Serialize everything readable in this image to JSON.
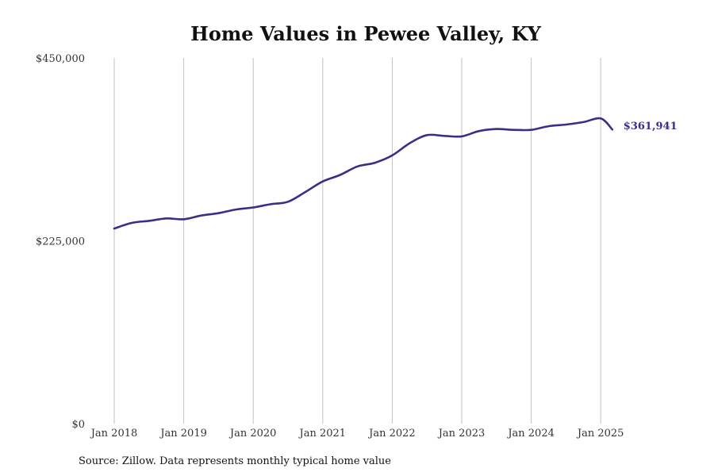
{
  "chart_data": {
    "type": "line",
    "title": "Home Values in Pewee Valley, KY",
    "xlabel": "",
    "ylabel": "",
    "ylim": [
      0,
      450000
    ],
    "y_ticks": [
      0,
      225000,
      450000
    ],
    "y_tick_labels": [
      "$0",
      "$225,000",
      "$450,000"
    ],
    "x_ticks": [
      "2018-01",
      "2019-01",
      "2020-01",
      "2021-01",
      "2022-01",
      "2023-01",
      "2024-01",
      "2025-01"
    ],
    "x_tick_labels": [
      "Jan 2018",
      "Jan 2019",
      "Jan 2020",
      "Jan 2021",
      "Jan 2022",
      "Jan 2023",
      "Jan 2024",
      "Jan 2025"
    ],
    "grid": "vertical",
    "line_color": "#3a2f86",
    "series": [
      {
        "points": [
          [
            "2018-01",
            240000
          ],
          [
            "2018-04",
            247000
          ],
          [
            "2018-07",
            249500
          ],
          [
            "2018-10",
            252500
          ],
          [
            "2019-01",
            251500
          ],
          [
            "2019-04",
            256000
          ],
          [
            "2019-07",
            259000
          ],
          [
            "2019-10",
            263500
          ],
          [
            "2020-01",
            266000
          ],
          [
            "2020-04",
            270000
          ],
          [
            "2020-07",
            273000
          ],
          [
            "2020-10",
            285000
          ],
          [
            "2021-01",
            298000
          ],
          [
            "2021-04",
            306000
          ],
          [
            "2021-07",
            316500
          ],
          [
            "2021-10",
            321000
          ],
          [
            "2022-01",
            330000
          ],
          [
            "2022-04",
            345000
          ],
          [
            "2022-07",
            355000
          ],
          [
            "2022-10",
            354000
          ],
          [
            "2023-01",
            353500
          ],
          [
            "2023-04",
            360000
          ],
          [
            "2023-07",
            362500
          ],
          [
            "2023-10",
            361500
          ],
          [
            "2024-01",
            361500
          ],
          [
            "2024-04",
            366000
          ],
          [
            "2024-07",
            368000
          ],
          [
            "2024-10",
            371000
          ],
          [
            "2025-01",
            375500
          ],
          [
            "2025-03",
            361941
          ]
        ]
      }
    ],
    "end_label": "$361,941"
  },
  "source_note": "Source: Zillow. Data represents monthly typical home value"
}
